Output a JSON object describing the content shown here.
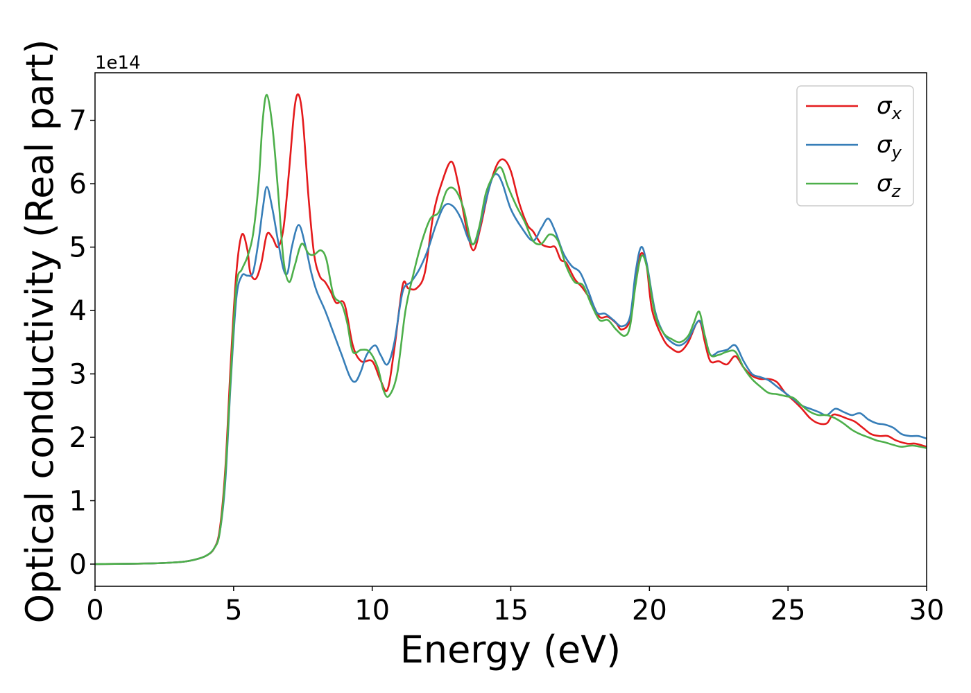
{
  "chart_data": {
    "type": "line",
    "xlabel": "Energy (eV)",
    "ylabel": "Optical conductivity (Real part)",
    "y_offset_label": "1e14",
    "y_unit_scale": 100000000000000.0,
    "xlim": [
      0,
      30
    ],
    "ylim": [
      -0.35,
      7.75
    ],
    "x_ticks": [
      0,
      5,
      10,
      15,
      20,
      25,
      30
    ],
    "y_ticks": [
      0,
      1,
      2,
      3,
      4,
      5,
      6,
      7
    ],
    "grid": false,
    "legend_position": "upper-right",
    "series": [
      {
        "name": "σx",
        "symbol": "σ",
        "subscript": "x",
        "color": "#e41a1c",
        "points": [
          [
            0,
            0
          ],
          [
            2,
            0.01
          ],
          [
            3,
            0.03
          ],
          [
            3.5,
            0.06
          ],
          [
            4,
            0.13
          ],
          [
            4.3,
            0.25
          ],
          [
            4.5,
            0.55
          ],
          [
            4.7,
            1.5
          ],
          [
            4.9,
            3.2
          ],
          [
            5.1,
            4.6
          ],
          [
            5.3,
            5.2
          ],
          [
            5.5,
            4.95
          ],
          [
            5.6,
            4.6
          ],
          [
            5.8,
            4.5
          ],
          [
            6,
            4.75
          ],
          [
            6.2,
            5.2
          ],
          [
            6.4,
            5.15
          ],
          [
            6.6,
            5.0
          ],
          [
            6.8,
            5.3
          ],
          [
            7.0,
            6.2
          ],
          [
            7.2,
            7.2
          ],
          [
            7.35,
            7.4
          ],
          [
            7.5,
            7.0
          ],
          [
            7.7,
            5.8
          ],
          [
            7.9,
            4.9
          ],
          [
            8.1,
            4.55
          ],
          [
            8.3,
            4.45
          ],
          [
            8.5,
            4.3
          ],
          [
            8.7,
            4.12
          ],
          [
            9.0,
            4.1
          ],
          [
            9.3,
            3.45
          ],
          [
            9.6,
            3.2
          ],
          [
            10.0,
            3.2
          ],
          [
            10.3,
            2.9
          ],
          [
            10.55,
            2.75
          ],
          [
            10.8,
            3.4
          ],
          [
            11.1,
            4.4
          ],
          [
            11.3,
            4.35
          ],
          [
            11.6,
            4.35
          ],
          [
            11.9,
            4.6
          ],
          [
            12.2,
            5.5
          ],
          [
            12.5,
            6.0
          ],
          [
            12.85,
            6.35
          ],
          [
            13.1,
            6.0
          ],
          [
            13.4,
            5.3
          ],
          [
            13.65,
            4.95
          ],
          [
            13.9,
            5.3
          ],
          [
            14.2,
            5.9
          ],
          [
            14.5,
            6.3
          ],
          [
            14.75,
            6.38
          ],
          [
            15.0,
            6.2
          ],
          [
            15.3,
            5.7
          ],
          [
            15.6,
            5.35
          ],
          [
            15.8,
            5.25
          ],
          [
            16.1,
            5.05
          ],
          [
            16.4,
            5.0
          ],
          [
            16.6,
            5.0
          ],
          [
            16.8,
            4.8
          ],
          [
            17.0,
            4.75
          ],
          [
            17.3,
            4.5
          ],
          [
            17.6,
            4.35
          ],
          [
            17.9,
            4.15
          ],
          [
            18.2,
            3.9
          ],
          [
            18.5,
            3.9
          ],
          [
            18.8,
            3.8
          ],
          [
            19.0,
            3.7
          ],
          [
            19.3,
            3.85
          ],
          [
            19.5,
            4.5
          ],
          [
            19.7,
            4.9
          ],
          [
            19.9,
            4.7
          ],
          [
            20.1,
            4.0
          ],
          [
            20.5,
            3.55
          ],
          [
            20.8,
            3.4
          ],
          [
            21.1,
            3.35
          ],
          [
            21.4,
            3.5
          ],
          [
            21.7,
            3.8
          ],
          [
            21.85,
            3.8
          ],
          [
            22.0,
            3.5
          ],
          [
            22.2,
            3.2
          ],
          [
            22.5,
            3.2
          ],
          [
            22.8,
            3.15
          ],
          [
            23.1,
            3.28
          ],
          [
            23.4,
            3.1
          ],
          [
            23.7,
            2.97
          ],
          [
            24.0,
            2.92
          ],
          [
            24.3,
            2.92
          ],
          [
            24.6,
            2.87
          ],
          [
            24.9,
            2.7
          ],
          [
            25.2,
            2.58
          ],
          [
            25.5,
            2.45
          ],
          [
            25.8,
            2.3
          ],
          [
            26.1,
            2.22
          ],
          [
            26.4,
            2.22
          ],
          [
            26.6,
            2.35
          ],
          [
            26.8,
            2.35
          ],
          [
            27.1,
            2.3
          ],
          [
            27.4,
            2.25
          ],
          [
            27.7,
            2.15
          ],
          [
            28.0,
            2.05
          ],
          [
            28.3,
            2.02
          ],
          [
            28.6,
            2.02
          ],
          [
            28.9,
            1.95
          ],
          [
            29.3,
            1.9
          ],
          [
            29.6,
            1.9
          ],
          [
            30,
            1.85
          ]
        ]
      },
      {
        "name": "σy",
        "symbol": "σ",
        "subscript": "y",
        "color": "#377eb8",
        "points": [
          [
            0,
            0
          ],
          [
            2,
            0.01
          ],
          [
            3,
            0.03
          ],
          [
            3.5,
            0.06
          ],
          [
            4,
            0.13
          ],
          [
            4.3,
            0.25
          ],
          [
            4.5,
            0.5
          ],
          [
            4.7,
            1.3
          ],
          [
            4.9,
            2.9
          ],
          [
            5.1,
            4.2
          ],
          [
            5.3,
            4.55
          ],
          [
            5.5,
            4.55
          ],
          [
            5.7,
            4.6
          ],
          [
            5.9,
            5.1
          ],
          [
            6.05,
            5.6
          ],
          [
            6.2,
            5.95
          ],
          [
            6.4,
            5.6
          ],
          [
            6.6,
            5.1
          ],
          [
            6.8,
            4.65
          ],
          [
            6.95,
            4.6
          ],
          [
            7.1,
            5.0
          ],
          [
            7.35,
            5.35
          ],
          [
            7.6,
            5.0
          ],
          [
            7.8,
            4.6
          ],
          [
            8.0,
            4.3
          ],
          [
            8.3,
            4.0
          ],
          [
            8.6,
            3.65
          ],
          [
            8.9,
            3.3
          ],
          [
            9.2,
            2.95
          ],
          [
            9.4,
            2.88
          ],
          [
            9.6,
            3.05
          ],
          [
            9.8,
            3.3
          ],
          [
            10.1,
            3.45
          ],
          [
            10.3,
            3.3
          ],
          [
            10.55,
            3.15
          ],
          [
            10.8,
            3.5
          ],
          [
            11.1,
            4.3
          ],
          [
            11.4,
            4.45
          ],
          [
            11.7,
            4.65
          ],
          [
            12.0,
            4.95
          ],
          [
            12.3,
            5.35
          ],
          [
            12.6,
            5.65
          ],
          [
            12.9,
            5.65
          ],
          [
            13.2,
            5.45
          ],
          [
            13.5,
            5.1
          ],
          [
            13.75,
            5.1
          ],
          [
            14.0,
            5.55
          ],
          [
            14.3,
            6.05
          ],
          [
            14.5,
            6.15
          ],
          [
            14.7,
            6.0
          ],
          [
            15.0,
            5.6
          ],
          [
            15.4,
            5.3
          ],
          [
            15.8,
            5.1
          ],
          [
            16.1,
            5.3
          ],
          [
            16.35,
            5.45
          ],
          [
            16.6,
            5.25
          ],
          [
            16.9,
            4.9
          ],
          [
            17.2,
            4.7
          ],
          [
            17.5,
            4.6
          ],
          [
            17.8,
            4.3
          ],
          [
            18.1,
            3.97
          ],
          [
            18.4,
            3.95
          ],
          [
            18.7,
            3.85
          ],
          [
            19.0,
            3.75
          ],
          [
            19.3,
            3.9
          ],
          [
            19.5,
            4.6
          ],
          [
            19.7,
            5.0
          ],
          [
            19.9,
            4.75
          ],
          [
            20.2,
            4.0
          ],
          [
            20.5,
            3.65
          ],
          [
            20.8,
            3.5
          ],
          [
            21.1,
            3.45
          ],
          [
            21.4,
            3.55
          ],
          [
            21.7,
            3.8
          ],
          [
            21.85,
            3.82
          ],
          [
            22.0,
            3.6
          ],
          [
            22.2,
            3.3
          ],
          [
            22.5,
            3.35
          ],
          [
            22.8,
            3.38
          ],
          [
            23.1,
            3.45
          ],
          [
            23.4,
            3.2
          ],
          [
            23.7,
            3.0
          ],
          [
            24.0,
            2.95
          ],
          [
            24.3,
            2.9
          ],
          [
            24.6,
            2.8
          ],
          [
            24.9,
            2.7
          ],
          [
            25.2,
            2.6
          ],
          [
            25.5,
            2.5
          ],
          [
            25.8,
            2.45
          ],
          [
            26.1,
            2.4
          ],
          [
            26.4,
            2.35
          ],
          [
            26.7,
            2.45
          ],
          [
            27.0,
            2.4
          ],
          [
            27.3,
            2.35
          ],
          [
            27.6,
            2.38
          ],
          [
            27.9,
            2.28
          ],
          [
            28.2,
            2.22
          ],
          [
            28.5,
            2.2
          ],
          [
            28.8,
            2.15
          ],
          [
            29.1,
            2.05
          ],
          [
            29.4,
            2.02
          ],
          [
            29.7,
            2.02
          ],
          [
            30,
            1.98
          ]
        ]
      },
      {
        "name": "σz",
        "symbol": "σ",
        "subscript": "z",
        "color": "#4daf4a",
        "points": [
          [
            0,
            0
          ],
          [
            2,
            0.01
          ],
          [
            3,
            0.03
          ],
          [
            3.5,
            0.06
          ],
          [
            4,
            0.13
          ],
          [
            4.3,
            0.25
          ],
          [
            4.5,
            0.5
          ],
          [
            4.7,
            1.4
          ],
          [
            4.9,
            3.0
          ],
          [
            5.1,
            4.4
          ],
          [
            5.3,
            4.65
          ],
          [
            5.5,
            4.85
          ],
          [
            5.7,
            5.2
          ],
          [
            5.9,
            6.0
          ],
          [
            6.05,
            7.0
          ],
          [
            6.2,
            7.4
          ],
          [
            6.4,
            6.9
          ],
          [
            6.6,
            5.9
          ],
          [
            6.8,
            4.8
          ],
          [
            7.0,
            4.45
          ],
          [
            7.2,
            4.7
          ],
          [
            7.45,
            5.05
          ],
          [
            7.7,
            4.9
          ],
          [
            7.9,
            4.88
          ],
          [
            8.15,
            4.95
          ],
          [
            8.35,
            4.8
          ],
          [
            8.6,
            4.25
          ],
          [
            8.9,
            4.1
          ],
          [
            9.1,
            3.8
          ],
          [
            9.3,
            3.35
          ],
          [
            9.6,
            3.38
          ],
          [
            9.9,
            3.35
          ],
          [
            10.2,
            3.1
          ],
          [
            10.4,
            2.75
          ],
          [
            10.6,
            2.65
          ],
          [
            10.9,
            3.0
          ],
          [
            11.2,
            4.0
          ],
          [
            11.5,
            4.6
          ],
          [
            11.8,
            5.1
          ],
          [
            12.1,
            5.45
          ],
          [
            12.4,
            5.55
          ],
          [
            12.7,
            5.9
          ],
          [
            13.0,
            5.9
          ],
          [
            13.3,
            5.6
          ],
          [
            13.6,
            5.05
          ],
          [
            13.85,
            5.3
          ],
          [
            14.1,
            5.85
          ],
          [
            14.4,
            6.15
          ],
          [
            14.65,
            6.25
          ],
          [
            14.9,
            5.95
          ],
          [
            15.2,
            5.65
          ],
          [
            15.5,
            5.4
          ],
          [
            15.8,
            5.1
          ],
          [
            16.1,
            5.05
          ],
          [
            16.4,
            5.2
          ],
          [
            16.7,
            5.1
          ],
          [
            17.0,
            4.7
          ],
          [
            17.3,
            4.45
          ],
          [
            17.6,
            4.4
          ],
          [
            17.9,
            4.1
          ],
          [
            18.2,
            3.85
          ],
          [
            18.5,
            3.85
          ],
          [
            18.8,
            3.7
          ],
          [
            19.1,
            3.6
          ],
          [
            19.3,
            3.75
          ],
          [
            19.5,
            4.4
          ],
          [
            19.7,
            4.85
          ],
          [
            19.9,
            4.7
          ],
          [
            20.2,
            3.95
          ],
          [
            20.5,
            3.65
          ],
          [
            20.8,
            3.55
          ],
          [
            21.1,
            3.5
          ],
          [
            21.4,
            3.6
          ],
          [
            21.6,
            3.8
          ],
          [
            21.8,
            3.98
          ],
          [
            22.0,
            3.6
          ],
          [
            22.2,
            3.3
          ],
          [
            22.5,
            3.3
          ],
          [
            22.8,
            3.35
          ],
          [
            23.1,
            3.35
          ],
          [
            23.4,
            3.1
          ],
          [
            23.7,
            2.92
          ],
          [
            24.0,
            2.8
          ],
          [
            24.3,
            2.7
          ],
          [
            24.6,
            2.68
          ],
          [
            24.9,
            2.65
          ],
          [
            25.2,
            2.62
          ],
          [
            25.5,
            2.5
          ],
          [
            25.8,
            2.4
          ],
          [
            26.1,
            2.35
          ],
          [
            26.4,
            2.35
          ],
          [
            26.7,
            2.3
          ],
          [
            27.0,
            2.22
          ],
          [
            27.3,
            2.12
          ],
          [
            27.6,
            2.05
          ],
          [
            27.9,
            2.0
          ],
          [
            28.2,
            1.95
          ],
          [
            28.5,
            1.92
          ],
          [
            28.8,
            1.88
          ],
          [
            29.1,
            1.85
          ],
          [
            29.5,
            1.87
          ],
          [
            30,
            1.83
          ]
        ]
      }
    ]
  }
}
